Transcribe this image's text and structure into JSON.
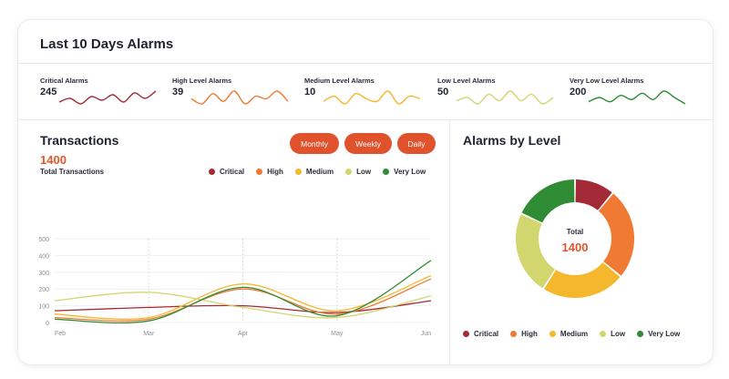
{
  "header": {
    "title": "Last 10 Days Alarms"
  },
  "kpis": [
    {
      "label": "Critical Alarms",
      "value": "245",
      "color": "#a32a36",
      "spark": [
        4,
        6,
        3,
        7,
        5,
        8,
        4,
        9,
        6,
        10
      ]
    },
    {
      "label": "High Level Alarms",
      "value": "39",
      "color": "#f07a33",
      "spark": [
        6,
        4,
        8,
        5,
        9,
        4,
        7,
        6,
        9,
        5
      ]
    },
    {
      "label": "Medium Level Alarms",
      "value": "10",
      "color": "#f5b82c",
      "spark": [
        5,
        7,
        4,
        8,
        6,
        5,
        9,
        4,
        7,
        6
      ]
    },
    {
      "label": "Low Level Alarms",
      "value": "50",
      "color": "#d2d66e",
      "spark": [
        5,
        6,
        4,
        7,
        5,
        8,
        5,
        7,
        4,
        6
      ]
    },
    {
      "label": "Very Low Level Alarms",
      "value": "200",
      "color": "#2f8c35",
      "spark": [
        5,
        7,
        5,
        8,
        6,
        9,
        6,
        10,
        7,
        4
      ]
    }
  ],
  "transactions": {
    "title": "Transactions",
    "total": "1400",
    "total_label": "Total Transactions",
    "buttons": {
      "monthly": "Monthly",
      "weekly": "Weekly",
      "daily": "Daily"
    }
  },
  "legend": [
    {
      "label": "Critical",
      "color": "#a32a36"
    },
    {
      "label": "High",
      "color": "#f07a33"
    },
    {
      "label": "Medium",
      "color": "#f5b82c"
    },
    {
      "label": "Low",
      "color": "#d2d66e"
    },
    {
      "label": "Very Low",
      "color": "#2f8c35"
    }
  ],
  "alarms_by_level": {
    "title": "Alarms by Level",
    "center_label": "Total",
    "center_value": "1400"
  },
  "chart_data": [
    {
      "type": "line",
      "x": [
        "Feb",
        "Mar",
        "Apr",
        "May",
        "Jun"
      ],
      "ylim": [
        0,
        500
      ],
      "yticks": [
        0,
        100,
        200,
        300,
        400,
        500
      ],
      "series": [
        {
          "name": "Critical",
          "color": "#a32a36",
          "values": [
            70,
            90,
            100,
            60,
            130
          ]
        },
        {
          "name": "High",
          "color": "#f07a33",
          "values": [
            30,
            20,
            200,
            50,
            260
          ]
        },
        {
          "name": "Medium",
          "color": "#f5b82c",
          "values": [
            50,
            30,
            230,
            70,
            280
          ]
        },
        {
          "name": "Low",
          "color": "#d2d66e",
          "values": [
            130,
            180,
            90,
            30,
            160
          ]
        },
        {
          "name": "Very Low",
          "color": "#2f8c35",
          "values": [
            20,
            10,
            210,
            40,
            370
          ]
        }
      ]
    },
    {
      "type": "pie",
      "categories": [
        "Critical",
        "High",
        "Medium",
        "Low",
        "Very Low"
      ],
      "values": [
        11,
        25,
        23,
        23,
        18
      ],
      "colors": [
        "#a32a36",
        "#f07a33",
        "#f5b82c",
        "#d2d66e",
        "#2f8c35"
      ]
    }
  ]
}
